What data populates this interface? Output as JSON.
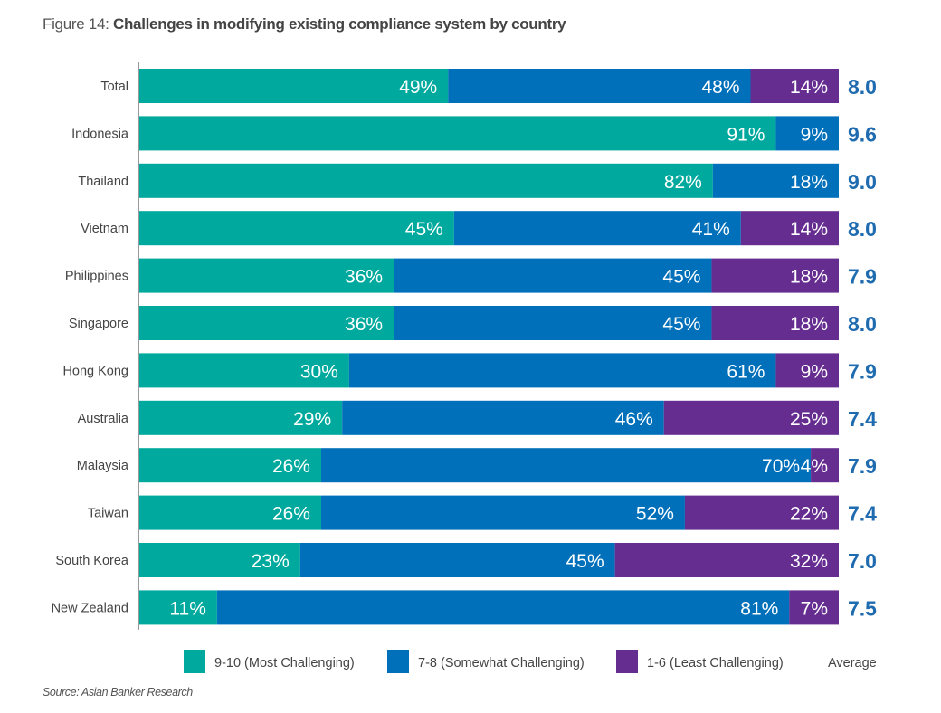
{
  "chart_data": {
    "type": "bar",
    "orientation": "horizontal",
    "stacked": true,
    "title_prefix": "Figure 14:",
    "title": "Challenges in modifying existing compliance system by country",
    "source": "Source: Asian Banker Research",
    "categories": [
      "Total",
      "Indonesia",
      "Thailand",
      "Vietnam",
      "Philippines",
      "Singapore",
      "Hong Kong",
      "Australia",
      "Malaysia",
      "Taiwan",
      "South Korea",
      "New Zealand"
    ],
    "series": [
      {
        "name": "9-10 (Most Challenging)",
        "color": "#00A99D",
        "values": [
          49,
          91,
          82,
          45,
          36,
          36,
          30,
          29,
          26,
          26,
          23,
          11
        ]
      },
      {
        "name": "7-8 (Somewhat Challenging)",
        "color": "#0070BA",
        "values": [
          48,
          9,
          18,
          41,
          45,
          45,
          61,
          46,
          70,
          52,
          45,
          81
        ]
      },
      {
        "name": "1-6 (Least Challenging)",
        "color": "#662D91",
        "values": [
          14,
          0,
          0,
          14,
          18,
          18,
          9,
          25,
          4,
          22,
          32,
          7
        ]
      }
    ],
    "average_label": "Average",
    "average_color": "#1F6BB0",
    "averages": [
      "8.0",
      "9.6",
      "9.0",
      "8.0",
      "7.9",
      "8.0",
      "7.9",
      "7.4",
      "7.9",
      "7.4",
      "7.0",
      "7.5"
    ],
    "legend_position": "bottom",
    "value_suffix": "%"
  }
}
